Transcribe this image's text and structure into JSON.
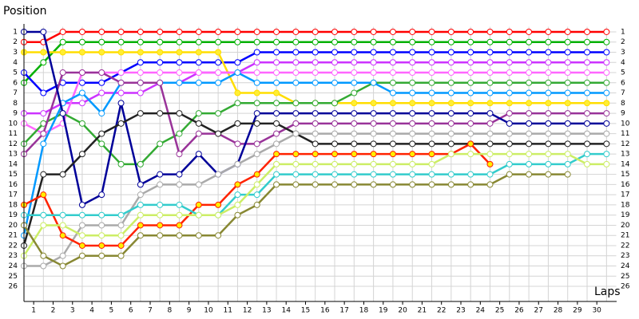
{
  "chart_data": {
    "type": "line",
    "y_title": "Position",
    "x_title": "Laps",
    "x": [
      0,
      1,
      2,
      3,
      4,
      5,
      6,
      7,
      8,
      9,
      10,
      11,
      12,
      13,
      14,
      15,
      16,
      17,
      18,
      19,
      20,
      21,
      22,
      23,
      24,
      25,
      26,
      27,
      28,
      29,
      30
    ],
    "xlim": [
      0,
      30.5
    ],
    "xticks": [
      {
        "value": 0.5,
        "label": "1"
      },
      {
        "value": 1.5,
        "label": "2"
      },
      {
        "value": 2.5,
        "label": "3"
      },
      {
        "value": 3.5,
        "label": "4"
      },
      {
        "value": 4.5,
        "label": "5"
      },
      {
        "value": 5.5,
        "label": "6"
      },
      {
        "value": 6.5,
        "label": "7"
      },
      {
        "value": 7.5,
        "label": "8"
      },
      {
        "value": 8.5,
        "label": "9"
      },
      {
        "value": 9.5,
        "label": "10"
      },
      {
        "value": 10.5,
        "label": "11"
      },
      {
        "value": 11.5,
        "label": "12"
      },
      {
        "value": 12.5,
        "label": "13"
      },
      {
        "value": 13.5,
        "label": "14"
      },
      {
        "value": 14.5,
        "label": "15"
      },
      {
        "value": 15.5,
        "label": "16"
      },
      {
        "value": 16.5,
        "label": "17"
      },
      {
        "value": 17.5,
        "label": "18"
      },
      {
        "value": 18.5,
        "label": "19"
      },
      {
        "value": 19.5,
        "label": "20"
      },
      {
        "value": 20.5,
        "label": "21"
      },
      {
        "value": 21.5,
        "label": "22"
      },
      {
        "value": 22.5,
        "label": "23"
      },
      {
        "value": 23.5,
        "label": "24"
      },
      {
        "value": 24.5,
        "label": "25"
      },
      {
        "value": 25.5,
        "label": "26"
      },
      {
        "value": 26.5,
        "label": "27"
      },
      {
        "value": 27.5,
        "label": "28"
      },
      {
        "value": 28.5,
        "label": "29"
      },
      {
        "value": 29.5,
        "label": "30"
      }
    ],
    "ylim": [
      0.5,
      26.5
    ],
    "y_reversed": true,
    "yticks": [
      1,
      2,
      3,
      4,
      5,
      6,
      7,
      8,
      9,
      10,
      11,
      12,
      13,
      14,
      15,
      16,
      17,
      18,
      19,
      20,
      21,
      22,
      23,
      24,
      25,
      26
    ],
    "grid": true,
    "series": [
      {
        "color": "#ff0000",
        "marker_color": "#ffffff",
        "values": [
          2,
          2,
          1,
          1,
          1,
          1,
          1,
          1,
          1,
          1,
          1,
          1,
          1,
          1,
          1,
          1,
          1,
          1,
          1,
          1,
          1,
          1,
          1,
          1,
          1,
          1,
          1,
          1,
          1,
          1,
          1
        ]
      },
      {
        "color": "#00b000",
        "marker_color": "#ffffff",
        "values": [
          6,
          4,
          2,
          2,
          2,
          2,
          2,
          2,
          2,
          2,
          2,
          2,
          2,
          2,
          2,
          2,
          2,
          2,
          2,
          2,
          2,
          2,
          2,
          2,
          2,
          2,
          2,
          2,
          2,
          2,
          2
        ]
      },
      {
        "color": "#0000ff",
        "marker_color": "#ffffff",
        "values": [
          5,
          7,
          6,
          6,
          6,
          5,
          4,
          4,
          4,
          4,
          4,
          4,
          3,
          3,
          3,
          3,
          3,
          3,
          3,
          3,
          3,
          3,
          3,
          3,
          3,
          3,
          3,
          3,
          3,
          3,
          3
        ]
      },
      {
        "color": "#ffdd00",
        "marker_color": "#ffee33",
        "values": [
          3,
          3,
          3,
          3,
          3,
          3,
          3,
          3,
          3,
          3,
          3,
          7,
          7,
          7,
          8,
          8,
          8,
          8,
          8,
          8,
          8,
          8,
          8,
          8,
          8,
          8,
          8,
          8,
          8,
          8,
          8
        ]
      },
      {
        "color": "#cc33ff",
        "marker_color": "#ffffff",
        "values": [
          9,
          9,
          8,
          8,
          7,
          7,
          7,
          6,
          6,
          5,
          5,
          5,
          4,
          4,
          4,
          4,
          4,
          4,
          4,
          4,
          4,
          4,
          4,
          4,
          4,
          4,
          4,
          4,
          4,
          4,
          4
        ]
      },
      {
        "color": "#ff66ff",
        "marker_color": "#ffffff",
        "values": [
          10,
          11,
          10,
          5,
          5,
          5,
          5,
          5,
          5,
          5,
          5,
          5,
          5,
          5,
          5,
          5,
          5,
          5,
          5,
          5,
          5,
          5,
          5,
          5,
          5,
          5,
          5,
          5,
          5,
          5,
          5
        ]
      },
      {
        "color": "#33aa33",
        "marker_color": "#ffffff",
        "values": [
          12,
          10,
          9,
          10,
          12,
          14,
          14,
          12,
          11,
          9,
          9,
          8,
          8,
          8,
          8,
          8,
          8,
          7,
          6,
          6,
          6,
          6,
          6,
          6,
          6,
          6,
          6,
          6,
          6,
          6,
          6
        ]
      },
      {
        "color": "#0099ff",
        "marker_color": "#ffffff",
        "values": [
          21,
          12,
          8,
          7,
          9,
          6,
          6,
          6,
          6,
          6,
          6,
          5,
          6,
          6,
          6,
          6,
          6,
          6,
          6,
          7,
          7,
          7,
          7,
          7,
          7,
          7,
          7,
          7,
          7,
          7,
          7
        ]
      },
      {
        "color": "#993399",
        "marker_color": "#ffffff",
        "values": [
          13,
          11,
          5,
          5,
          5,
          6,
          6,
          6,
          13,
          11,
          11,
          12,
          12,
          11,
          10,
          10,
          10,
          10,
          10,
          10,
          10,
          10,
          10,
          10,
          10,
          9,
          9,
          9,
          9,
          9,
          9
        ]
      },
      {
        "color": "#000099",
        "marker_color": "#ffffff",
        "values": [
          1,
          1,
          9,
          18,
          17,
          8,
          16,
          15,
          15,
          13,
          15,
          14,
          9,
          9,
          9,
          9,
          9,
          9,
          9,
          9,
          9,
          9,
          9,
          9,
          9,
          10,
          10,
          10,
          10,
          10,
          10
        ]
      },
      {
        "color": "#222222",
        "marker_color": "#ffffff",
        "values": [
          22,
          15,
          15,
          13,
          11,
          10,
          9,
          9,
          9,
          10,
          11,
          10,
          10,
          10,
          11,
          12,
          12,
          12,
          12,
          12,
          12,
          12,
          12,
          12,
          12,
          12,
          12,
          12,
          12,
          12,
          12
        ]
      },
      {
        "color": "#aaaaaa",
        "marker_color": "#ffffff",
        "values": [
          24,
          24,
          23,
          20,
          20,
          20,
          17,
          16,
          16,
          16,
          15,
          14,
          13,
          12,
          11,
          11,
          11,
          11,
          11,
          11,
          11,
          11,
          11,
          11,
          11,
          11,
          11,
          11,
          11,
          11,
          11
        ]
      },
      {
        "color": "#ff2200",
        "marker_color": "#ffee00",
        "values": [
          18,
          17,
          21,
          22,
          22,
          22,
          20,
          20,
          20,
          18,
          18,
          16,
          15,
          13,
          13,
          13,
          13,
          13,
          13,
          13,
          13,
          13,
          13,
          12,
          14,
          null,
          null,
          null,
          null,
          null,
          null
        ]
      },
      {
        "color": "#33cccc",
        "marker_color": "#ffffff",
        "values": [
          19,
          19,
          19,
          19,
          19,
          19,
          18,
          18,
          18,
          19,
          19,
          17,
          17,
          15,
          15,
          15,
          15,
          15,
          15,
          15,
          15,
          15,
          15,
          15,
          15,
          14,
          14,
          14,
          14,
          13,
          13
        ]
      },
      {
        "color": "#ccee66",
        "marker_color": "#ffffff",
        "values": [
          23,
          20,
          20,
          21,
          21,
          21,
          19,
          19,
          19,
          19,
          19,
          18,
          16,
          14,
          14,
          14,
          14,
          14,
          14,
          14,
          14,
          14,
          13,
          13,
          13,
          13,
          13,
          13,
          13,
          14,
          14
        ]
      },
      {
        "color": "#888833",
        "marker_color": "#ffffff",
        "values": [
          20,
          23,
          24,
          23,
          23,
          23,
          21,
          21,
          21,
          21,
          21,
          19,
          18,
          16,
          16,
          16,
          16,
          16,
          16,
          16,
          16,
          16,
          16,
          16,
          16,
          15,
          15,
          15,
          15,
          null,
          null
        ]
      }
    ]
  }
}
